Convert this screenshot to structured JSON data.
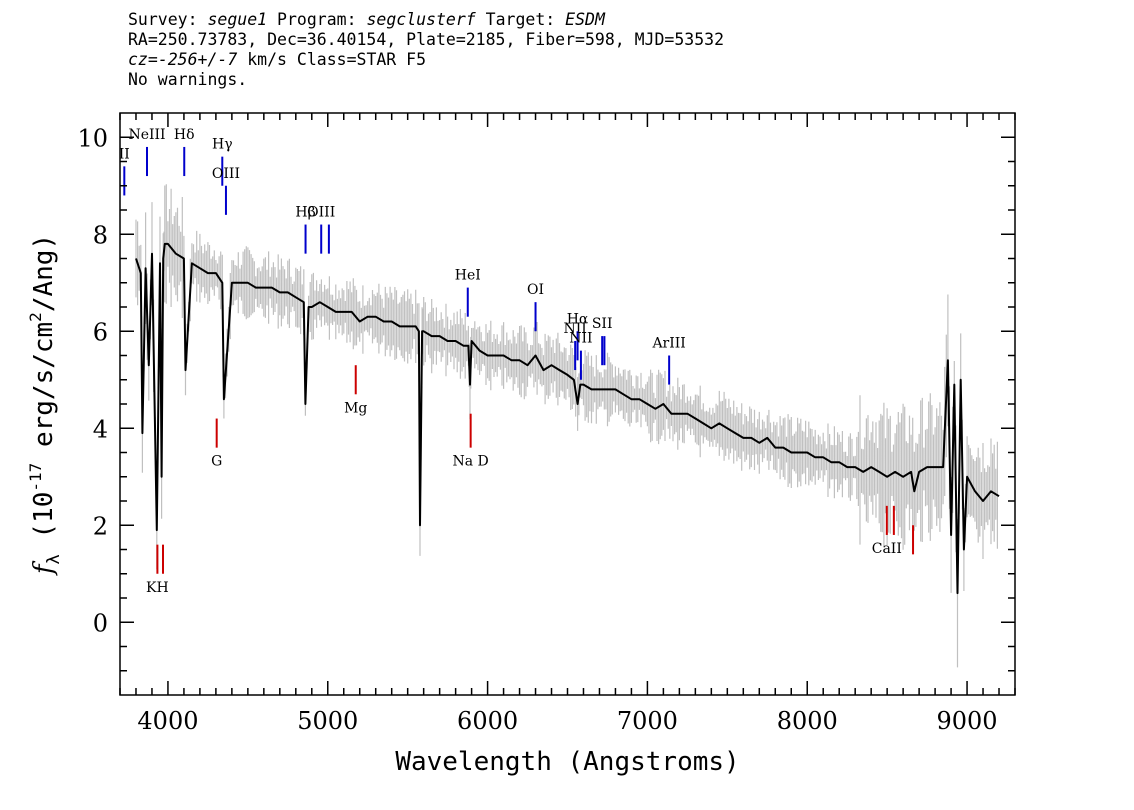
{
  "header": {
    "survey_label": "Survey:",
    "survey": "segue1",
    "program_label": "Program:",
    "program": "segclusterf",
    "target_label": "Target:",
    "target": "ESDM",
    "line2": "RA=250.73783, Dec=36.40154, Plate=2185, Fiber=598, MJD=53532",
    "cz_label": "cz=",
    "cz_value": "-256+/-7",
    "cz_suffix": "km/s Class=STAR F5",
    "line4": "No warnings."
  },
  "chart_data": {
    "type": "line",
    "xlabel": "Wavelength (Angstroms)",
    "ylabel": "f_λ (10^-17 erg/s/cm^2/Ang)",
    "xlim": [
      3700,
      9300
    ],
    "ylim": [
      -1.5,
      10.5
    ],
    "xticks": [
      4000,
      5000,
      6000,
      7000,
      8000,
      9000
    ],
    "yticks": [
      0,
      2,
      4,
      6,
      8,
      10
    ],
    "colors": {
      "flux": "#000000",
      "error_band": "#c0c0c0",
      "emission": "#0000cc",
      "absorption": "#cc0000"
    },
    "series": [
      {
        "name": "",
        "x": [
          3800,
          3830,
          3840,
          3860,
          3880,
          3900,
          3930,
          3950,
          3960,
          3970,
          3980,
          4000,
          4050,
          4100,
          4110,
          4150,
          4200,
          4250,
          4300,
          4340,
          4350,
          4400,
          4450,
          4500,
          4550,
          4600,
          4650,
          4700,
          4750,
          4800,
          4850,
          4860,
          4880,
          4900,
          4950,
          5000,
          5050,
          5100,
          5150,
          5200,
          5250,
          5300,
          5350,
          5400,
          5450,
          5500,
          5550,
          5570,
          5577,
          5590,
          5600,
          5650,
          5700,
          5750,
          5800,
          5850,
          5880,
          5890,
          5900,
          5950,
          6000,
          6050,
          6100,
          6150,
          6200,
          6250,
          6300,
          6350,
          6400,
          6450,
          6500,
          6540,
          6563,
          6580,
          6600,
          6650,
          6700,
          6750,
          6800,
          6850,
          6900,
          6950,
          7000,
          7050,
          7100,
          7150,
          7200,
          7250,
          7300,
          7350,
          7400,
          7450,
          7500,
          7550,
          7600,
          7650,
          7700,
          7750,
          7800,
          7850,
          7900,
          7950,
          8000,
          8050,
          8100,
          8150,
          8200,
          8250,
          8300,
          8350,
          8400,
          8450,
          8500,
          8550,
          8600,
          8650,
          8670,
          8700,
          8750,
          8800,
          8850,
          8880,
          8900,
          8920,
          8940,
          8960,
          8980,
          9000,
          9050,
          9100,
          9150,
          9200
        ],
        "values": [
          7.5,
          7.2,
          3.9,
          7.3,
          5.3,
          7.6,
          1.9,
          7.4,
          3.0,
          7.5,
          7.8,
          7.8,
          7.6,
          7.5,
          5.2,
          7.4,
          7.3,
          7.2,
          7.2,
          7.0,
          4.6,
          7.0,
          7.0,
          7.0,
          6.9,
          6.9,
          6.9,
          6.8,
          6.8,
          6.7,
          6.6,
          4.5,
          6.5,
          6.5,
          6.6,
          6.5,
          6.4,
          6.4,
          6.4,
          6.2,
          6.3,
          6.3,
          6.2,
          6.2,
          6.1,
          6.1,
          6.1,
          6.0,
          2.0,
          6.0,
          6.0,
          5.9,
          5.9,
          5.8,
          5.8,
          5.7,
          5.7,
          4.9,
          5.8,
          5.6,
          5.5,
          5.5,
          5.5,
          5.4,
          5.4,
          5.3,
          5.5,
          5.2,
          5.3,
          5.2,
          5.1,
          5.0,
          4.5,
          4.9,
          4.9,
          4.8,
          4.8,
          4.8,
          4.8,
          4.7,
          4.6,
          4.6,
          4.5,
          4.4,
          4.5,
          4.3,
          4.3,
          4.3,
          4.2,
          4.1,
          4.0,
          4.1,
          4.0,
          3.9,
          3.8,
          3.8,
          3.7,
          3.8,
          3.6,
          3.6,
          3.5,
          3.5,
          3.5,
          3.4,
          3.4,
          3.3,
          3.3,
          3.2,
          3.2,
          3.1,
          3.2,
          3.1,
          3.0,
          3.1,
          3.0,
          3.1,
          2.7,
          3.1,
          3.2,
          3.2,
          3.2,
          5.4,
          1.8,
          4.9,
          0.6,
          5.0,
          1.5,
          3.0,
          2.7,
          2.5,
          2.7,
          2.6
        ]
      }
    ],
    "emission_lines": [
      {
        "label": "II",
        "x": 3727,
        "y_top": 9.4,
        "y_bottom": 8.8
      },
      {
        "label": "NeIII",
        "x": 3869,
        "y_top": 9.8,
        "y_bottom": 9.2
      },
      {
        "label": "Hδ",
        "x": 4102,
        "y_top": 9.8,
        "y_bottom": 9.2
      },
      {
        "label": "Hγ",
        "x": 4340,
        "y_top": 9.6,
        "y_bottom": 9.0
      },
      {
        "label": "OIII",
        "x": 4363,
        "y_top": 9.0,
        "y_bottom": 8.4
      },
      {
        "label": "Hβ",
        "x": 4861,
        "y_top": 8.2,
        "y_bottom": 7.6
      },
      {
        "label": "OIII",
        "x": 4959,
        "y_top": 8.2,
        "y_bottom": 7.6
      },
      {
        "label": "",
        "x": 5007,
        "y_top": 8.2,
        "y_bottom": 7.6
      },
      {
        "label": "HeI",
        "x": 5876,
        "y_top": 6.9,
        "y_bottom": 6.3
      },
      {
        "label": "OI",
        "x": 6300,
        "y_top": 6.6,
        "y_bottom": 6.0
      },
      {
        "label": "NII",
        "x": 6548,
        "y_top": 5.8,
        "y_bottom": 5.2
      },
      {
        "label": "Hα",
        "x": 6563,
        "y_top": 6.0,
        "y_bottom": 5.4
      },
      {
        "label": "NII",
        "x": 6584,
        "y_top": 5.6,
        "y_bottom": 5.0
      },
      {
        "label": "SII",
        "x": 6717,
        "y_top": 5.9,
        "y_bottom": 5.3
      },
      {
        "label": "",
        "x": 6731,
        "y_top": 5.9,
        "y_bottom": 5.3
      },
      {
        "label": "ArIII",
        "x": 7136,
        "y_top": 5.5,
        "y_bottom": 4.9
      }
    ],
    "absorption_lines": [
      {
        "label": "KH",
        "x": 3934,
        "y_top": 1.6,
        "y_bottom": 1.0
      },
      {
        "label": "",
        "x": 3969,
        "y_top": 1.6,
        "y_bottom": 1.0
      },
      {
        "label": "G",
        "x": 4305,
        "y_top": 4.2,
        "y_bottom": 3.6
      },
      {
        "label": "Mg",
        "x": 5175,
        "y_top": 5.3,
        "y_bottom": 4.7
      },
      {
        "label": "Na D",
        "x": 5894,
        "y_top": 4.3,
        "y_bottom": 3.6
      },
      {
        "label": "CaII",
        "x": 8498,
        "y_top": 2.4,
        "y_bottom": 1.8
      },
      {
        "label": "",
        "x": 8542,
        "y_top": 2.4,
        "y_bottom": 1.8
      },
      {
        "label": "",
        "x": 8662,
        "y_top": 2.0,
        "y_bottom": 1.4
      }
    ]
  }
}
